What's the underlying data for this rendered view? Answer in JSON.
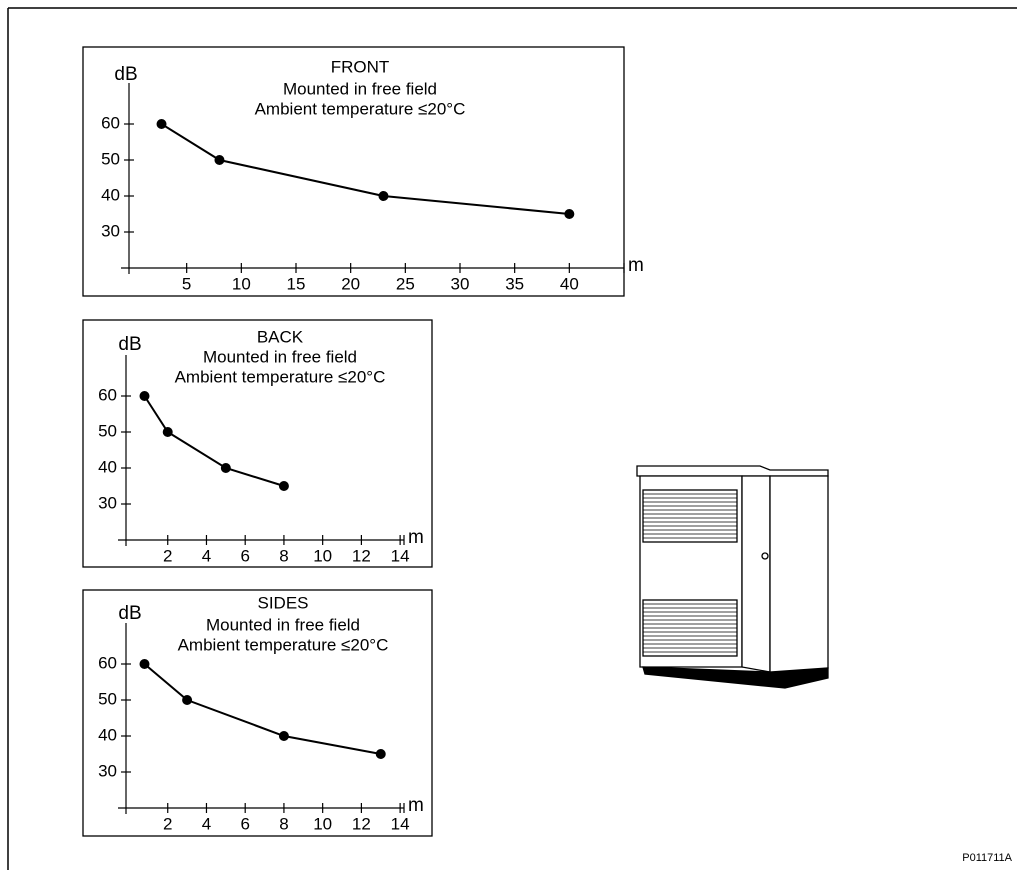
{
  "chart_data": [
    {
      "type": "line",
      "title": "FRONT",
      "subtitle": [
        "Mounted in free field",
        "Ambient temperature ≤20°C"
      ],
      "ylabel": "dB",
      "xlabel": "m",
      "color": "#000000",
      "x": [
        2.7,
        8,
        23,
        40
      ],
      "values": [
        60,
        50,
        40,
        35
      ],
      "xlim": [
        0,
        45
      ],
      "xticks": [
        5,
        10,
        15,
        20,
        25,
        30,
        35,
        40
      ],
      "ylim": [
        20,
        70
      ],
      "yticks": [
        30,
        40,
        50,
        60
      ]
    },
    {
      "type": "line",
      "title": "BACK",
      "subtitle": [
        "Mounted in free field",
        "Ambient temperature ≤20°C"
      ],
      "ylabel": "dB",
      "xlabel": "m",
      "color": "#000000",
      "x": [
        0.8,
        2,
        5,
        8
      ],
      "values": [
        60,
        50,
        40,
        35
      ],
      "xlim": [
        0,
        14.2
      ],
      "xticks": [
        2,
        4,
        6,
        8,
        10,
        12,
        14
      ],
      "ylim": [
        20,
        70
      ],
      "yticks": [
        30,
        40,
        50,
        60
      ]
    },
    {
      "type": "line",
      "title": "SIDES",
      "subtitle": [
        "Mounted in free field",
        "Ambient temperature ≤20°C"
      ],
      "ylabel": "dB",
      "xlabel": "m",
      "color": "#000000",
      "x": [
        0.8,
        3,
        8,
        13
      ],
      "values": [
        60,
        50,
        40,
        35
      ],
      "xlim": [
        0,
        14.2
      ],
      "xticks": [
        2,
        4,
        6,
        8,
        10,
        12,
        14
      ],
      "ylim": [
        20,
        70
      ],
      "yticks": [
        30,
        40,
        50,
        60
      ]
    }
  ],
  "figure_id": "P011711A"
}
